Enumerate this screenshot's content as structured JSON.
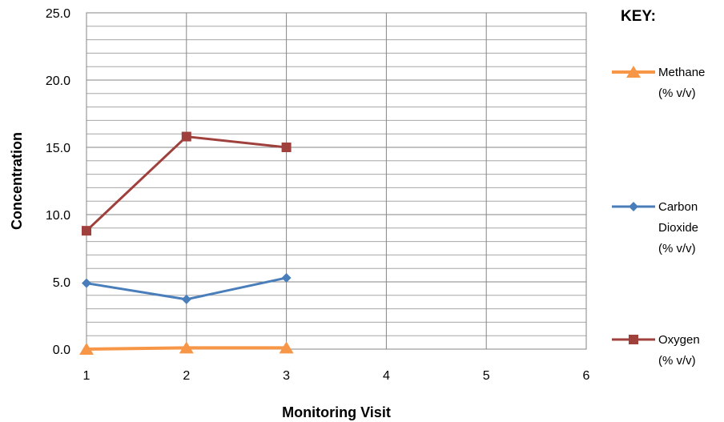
{
  "chart_data": {
    "type": "line",
    "xlabel": "Monitoring Visit",
    "ylabel": "Concentration",
    "xlim": [
      1,
      6
    ],
    "ylim": [
      0,
      25
    ],
    "x_ticks": [
      "1",
      "2",
      "3",
      "4",
      "5",
      "6"
    ],
    "y_ticks": [
      "0.0",
      "5.0",
      "10.0",
      "15.0",
      "20.0",
      "25.0"
    ],
    "y_major_step": 5,
    "y_minor_step": 1,
    "grid": true,
    "legend_title": "KEY:",
    "legend_position": "right",
    "series": [
      {
        "name": "Methane (% v/v)",
        "legend_lines": [
          "Methane",
          "(% v/v)"
        ],
        "marker": "triangle",
        "color": "#F79646",
        "x": [
          1,
          2,
          3
        ],
        "values": [
          0.0,
          0.1,
          0.1
        ]
      },
      {
        "name": "Carbon Dioxide (% v/v)",
        "legend_lines": [
          "Carbon",
          "Dioxide",
          "(% v/v)"
        ],
        "marker": "diamond",
        "color": "#4A7EBB",
        "x": [
          1,
          2,
          3
        ],
        "values": [
          4.9,
          3.7,
          5.3
        ]
      },
      {
        "name": "Oxygen (% v/v)",
        "legend_lines": [
          "Oxygen",
          "(% v/v)"
        ],
        "marker": "square",
        "color": "#A0403D",
        "x": [
          1,
          2,
          3
        ],
        "values": [
          8.8,
          15.8,
          15.0
        ]
      }
    ]
  }
}
